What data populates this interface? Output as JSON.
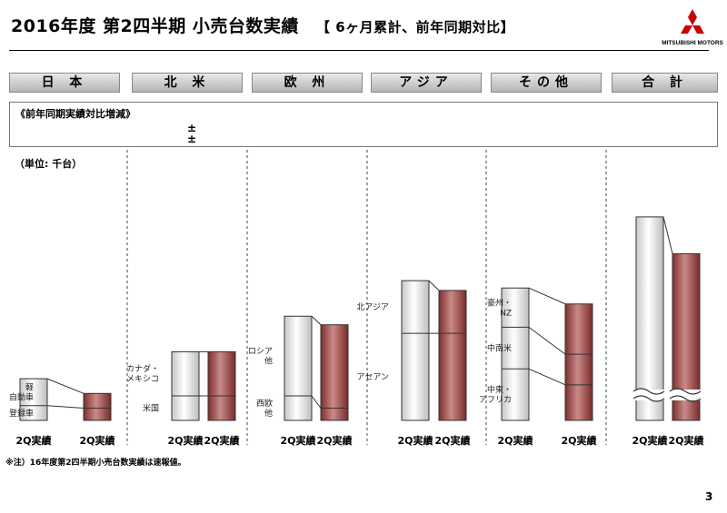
{
  "header": {
    "title": "2016年度 第2四半期 小売台数実績",
    "subtitle": "【 6ヶ月累計、前年同期対比】",
    "logo_text": "MITSUBISHI MOTORS"
  },
  "yoy_box": {
    "label": "《前年同期実績対比増減》",
    "signs": [
      "±",
      "±"
    ]
  },
  "unit_label": "（単位: 千台）",
  "footnote": "※注）16年度第2四半期小売台数実績は速報値。",
  "page_number": "3",
  "colors": {
    "prior_bar": "#ebebeb",
    "current_bar": "#a14a48",
    "accent": "#cc0000"
  },
  "chart_data": {
    "type": "bar",
    "title": "2016年度 第2四半期 小売台数実績",
    "note": "Values are approximate relative magnitudes (thousand units); the slide prints no numbers.",
    "bar_labels": [
      "2Q実績",
      "2Q実績"
    ],
    "regions": [
      {
        "name": "日 本",
        "segments": [
          "登録車",
          "軽自動車"
        ],
        "prior": [
          12,
          22
        ],
        "current": [
          10,
          12
        ],
        "prior_labels": [
          "登録車",
          "軽\n自動車"
        ]
      },
      {
        "name": "北 米",
        "segments": [
          "米国",
          "カナダ・メキシコ"
        ],
        "prior": [
          20,
          36
        ],
        "current": [
          20,
          36
        ],
        "prior_labels": [
          "米国",
          "カナダ・\nメキシコ"
        ]
      },
      {
        "name": "欧 州",
        "segments": [
          "西欧他",
          "ロシア他"
        ],
        "prior": [
          20,
          65
        ],
        "current": [
          10,
          68
        ],
        "prior_labels": [
          "西欧\n他",
          "ロシア\n他"
        ]
      },
      {
        "name": "アジア",
        "segments": [
          "アセアン",
          "北アジア"
        ],
        "prior": [
          71,
          43
        ],
        "current": [
          71,
          35
        ]
      },
      {
        "name": "その他",
        "segments": [
          "中東・アフリカ",
          "中南米",
          "豪州・NZ"
        ],
        "prior": [
          42,
          34,
          32
        ],
        "current": [
          29,
          25,
          41
        ],
        "prior_labels": [
          "中東・\nアフリカ",
          "中南米",
          "豪州・\nNZ"
        ]
      },
      {
        "name": "合 計",
        "segments": [
          "合計"
        ],
        "prior": [
          166
        ],
        "current": [
          136
        ],
        "axis_break": true
      }
    ]
  }
}
